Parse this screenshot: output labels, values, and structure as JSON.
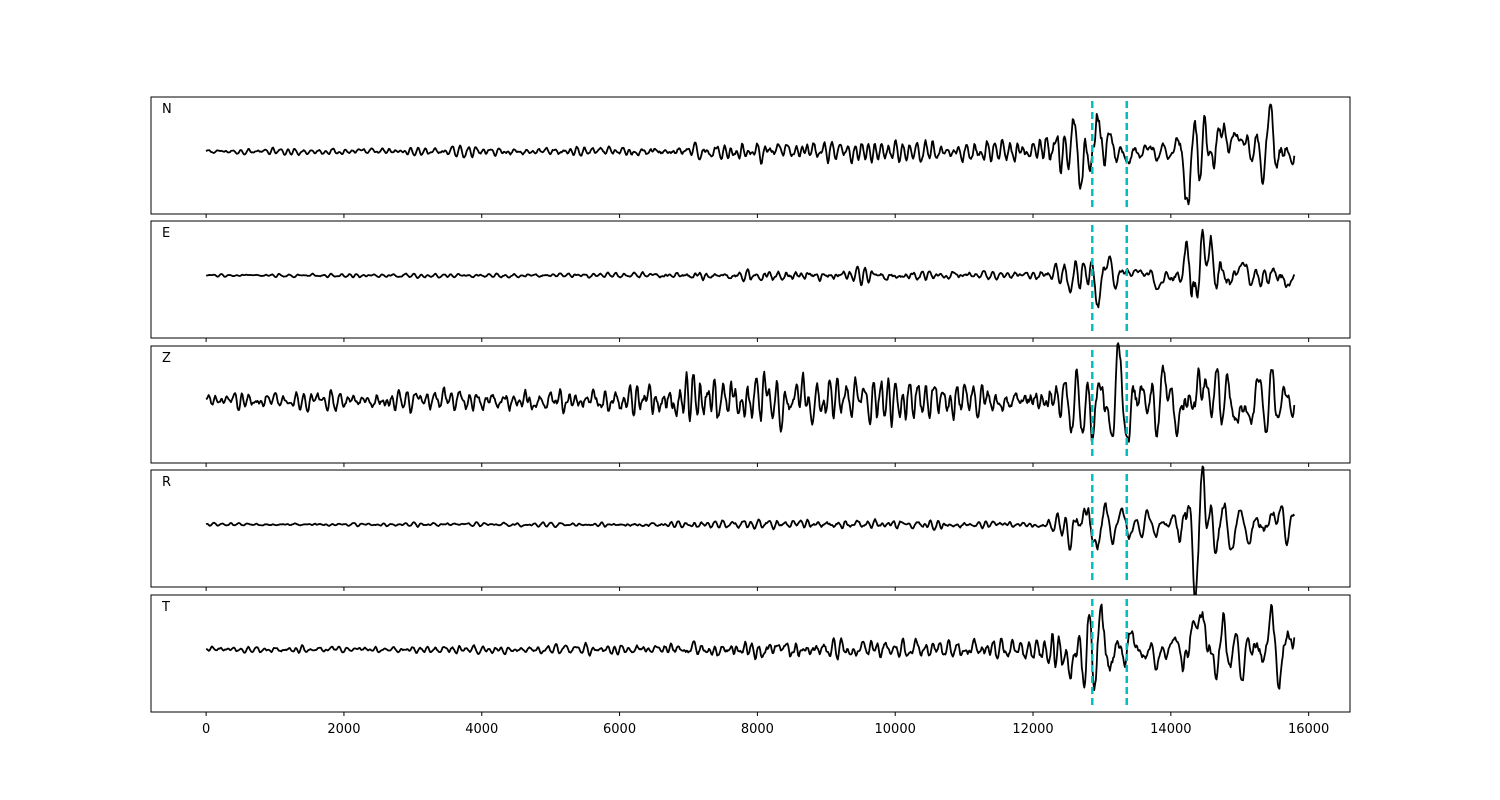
{
  "chart_data": {
    "type": "line",
    "title": "",
    "xlabel": "",
    "ylabel": "",
    "xlim": [
      -800,
      16600
    ],
    "xticks": [
      0,
      2000,
      4000,
      6000,
      8000,
      10000,
      12000,
      14000,
      16000
    ],
    "xtick_labels": [
      "0",
      "2000",
      "4000",
      "6000",
      "8000",
      "10000",
      "12000",
      "14000",
      "16000"
    ],
    "grid": false,
    "n_samples": 15800,
    "markers": {
      "color": "#00bfbf",
      "style": "dashed",
      "x": [
        12860,
        13360
      ]
    },
    "trace_color": "#000000",
    "panels": [
      {
        "label": "N",
        "amplitude_envelope": [
          [
            0,
            0.05
          ],
          [
            6000,
            0.1
          ],
          [
            8000,
            0.18
          ],
          [
            10000,
            0.2
          ],
          [
            12000,
            0.22
          ],
          [
            12950,
            0.75
          ],
          [
            13200,
            0.3
          ],
          [
            14000,
            0.15
          ],
          [
            14350,
            0.9
          ],
          [
            14600,
            0.6
          ],
          [
            15000,
            0.3
          ],
          [
            15600,
            0.65
          ],
          [
            15800,
            0.3
          ]
        ]
      },
      {
        "label": "E",
        "amplitude_envelope": [
          [
            0,
            0.03
          ],
          [
            6000,
            0.05
          ],
          [
            8000,
            0.12
          ],
          [
            10000,
            0.12
          ],
          [
            12000,
            0.08
          ],
          [
            12950,
            0.5
          ],
          [
            13200,
            0.2
          ],
          [
            14000,
            0.15
          ],
          [
            14350,
            0.8
          ],
          [
            14600,
            0.5
          ],
          [
            15000,
            0.2
          ],
          [
            15600,
            0.3
          ],
          [
            15800,
            0.3
          ]
        ]
      },
      {
        "label": "Z",
        "amplitude_envelope": [
          [
            0,
            0.15
          ],
          [
            6000,
            0.3
          ],
          [
            7000,
            0.55
          ],
          [
            8000,
            0.5
          ],
          [
            10000,
            0.45
          ],
          [
            12000,
            0.35
          ],
          [
            13300,
            0.7
          ],
          [
            14000,
            0.45
          ],
          [
            14350,
            0.65
          ],
          [
            15000,
            0.45
          ],
          [
            15800,
            0.3
          ]
        ]
      },
      {
        "label": "R",
        "amplitude_envelope": [
          [
            0,
            0.03
          ],
          [
            6000,
            0.05
          ],
          [
            8000,
            0.1
          ],
          [
            10000,
            0.1
          ],
          [
            12000,
            0.06
          ],
          [
            12950,
            0.5
          ],
          [
            13200,
            0.2
          ],
          [
            14000,
            0.15
          ],
          [
            14350,
            0.85
          ],
          [
            14600,
            0.5
          ],
          [
            15000,
            0.2
          ],
          [
            15600,
            0.35
          ],
          [
            15800,
            0.25
          ]
        ]
      },
      {
        "label": "T",
        "amplitude_envelope": [
          [
            0,
            0.06
          ],
          [
            6000,
            0.1
          ],
          [
            8000,
            0.2
          ],
          [
            10000,
            0.2
          ],
          [
            12000,
            0.25
          ],
          [
            13000,
            0.75
          ],
          [
            13200,
            0.35
          ],
          [
            14000,
            0.2
          ],
          [
            14350,
            0.65
          ],
          [
            14600,
            0.6
          ],
          [
            15000,
            0.35
          ],
          [
            15500,
            0.55
          ],
          [
            15800,
            0.5
          ]
        ]
      }
    ]
  }
}
